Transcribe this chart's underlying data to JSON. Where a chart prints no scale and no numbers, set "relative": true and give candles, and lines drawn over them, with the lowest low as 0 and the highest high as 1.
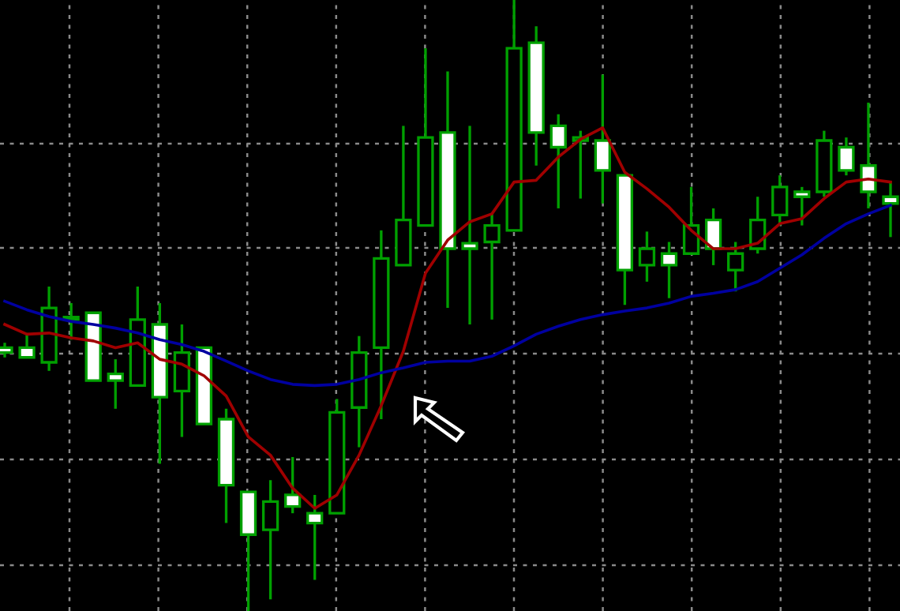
{
  "chart_data": {
    "type": "candlestick",
    "relative": true,
    "grid": true,
    "categories": [
      null,
      null,
      null,
      null,
      null,
      null,
      null,
      null,
      null,
      null,
      null,
      null,
      null,
      null,
      null,
      null,
      null,
      null,
      null,
      null,
      null,
      null,
      null,
      null,
      null,
      null,
      null,
      null,
      null,
      null,
      null,
      null,
      null,
      null,
      null,
      null,
      null,
      null,
      null,
      null,
      null
    ],
    "ohlc": [
      [
        0.431,
        0.439,
        0.415,
        0.423
      ],
      [
        0.431,
        0.455,
        0.415,
        0.415
      ],
      [
        0.407,
        0.531,
        0.393,
        0.496
      ],
      [
        0.477,
        0.504,
        0.444,
        0.477
      ],
      [
        0.488,
        0.488,
        0.377,
        0.377
      ],
      [
        0.388,
        0.412,
        0.331,
        0.377
      ],
      [
        0.369,
        0.531,
        0.369,
        0.477
      ],
      [
        0.469,
        0.504,
        0.241,
        0.35
      ],
      [
        0.36,
        0.469,
        0.285,
        0.423
      ],
      [
        0.431,
        0.431,
        0.306,
        0.306
      ],
      [
        0.314,
        0.331,
        0.144,
        0.206
      ],
      [
        0.195,
        0.195,
        0,
        0.125
      ],
      [
        0.133,
        0.214,
        0.019,
        0.179
      ],
      [
        0.19,
        0.252,
        0.16,
        0.171
      ],
      [
        0.16,
        0.19,
        0.051,
        0.144
      ],
      [
        0.16,
        0.347,
        0.16,
        0.325
      ],
      [
        0.333,
        0.45,
        0.268,
        0.423
      ],
      [
        0.431,
        0.623,
        0.314,
        0.577
      ],
      [
        0.566,
        0.794,
        0.566,
        0.64
      ],
      [
        0.631,
        0.921,
        0.631,
        0.775
      ],
      [
        0.783,
        0.883,
        0.496,
        0.593
      ],
      [
        0.602,
        0.794,
        0.469,
        0.593
      ],
      [
        0.604,
        0.65,
        0.477,
        0.631
      ],
      [
        0.623,
        1,
        0.623,
        0.921
      ],
      [
        0.93,
        0.957,
        0.729,
        0.783
      ],
      [
        0.794,
        0.813,
        0.659,
        0.759
      ],
      [
        0.77,
        0.786,
        0.675,
        0.775
      ],
      [
        0.77,
        0.878,
        0.667,
        0.721
      ],
      [
        0.713,
        0.713,
        0.501,
        0.558
      ],
      [
        0.566,
        0.621,
        0.539,
        0.593
      ],
      [
        0.585,
        0.604,
        0.512,
        0.566
      ],
      [
        0.585,
        0.694,
        0.585,
        0.631
      ],
      [
        0.64,
        0.659,
        0.566,
        0.593
      ],
      [
        0.558,
        0.604,
        0.523,
        0.585
      ],
      [
        0.593,
        0.678,
        0.585,
        0.64
      ],
      [
        0.648,
        0.713,
        0.631,
        0.694
      ],
      [
        0.686,
        0.694,
        0.631,
        0.678
      ],
      [
        0.686,
        0.786,
        0.678,
        0.77
      ],
      [
        0.759,
        0.775,
        0.713,
        0.721
      ],
      [
        0.729,
        0.832,
        0.659,
        0.686
      ],
      [
        0.678,
        0.702,
        0.612,
        0.667
      ]
    ],
    "series": [
      {
        "type": "line",
        "color": "#a00000",
        "values": [
          0.469,
          0.453,
          0.455,
          0.447,
          0.442,
          0.431,
          0.439,
          0.412,
          0.404,
          0.385,
          0.352,
          0.285,
          0.255,
          0.201,
          0.168,
          0.19,
          0.255,
          0.336,
          0.425,
          0.553,
          0.607,
          0.637,
          0.65,
          0.702,
          0.705,
          0.743,
          0.772,
          0.791,
          0.718,
          0.691,
          0.661,
          0.623,
          0.593,
          0.593,
          0.602,
          0.634,
          0.642,
          0.675,
          0.702,
          0.707,
          0.702
        ]
      },
      {
        "type": "line",
        "color": "#0000a0",
        "values": [
          0.507,
          0.493,
          0.482,
          0.474,
          0.469,
          0.463,
          0.455,
          0.444,
          0.436,
          0.425,
          0.409,
          0.393,
          0.379,
          0.371,
          0.369,
          0.371,
          0.379,
          0.39,
          0.398,
          0.407,
          0.409,
          0.409,
          0.417,
          0.434,
          0.453,
          0.466,
          0.477,
          0.485,
          0.491,
          0.496,
          0.504,
          0.515,
          0.52,
          0.526,
          0.539,
          0.561,
          0.583,
          0.61,
          0.634,
          0.65,
          0.664
        ]
      }
    ]
  }
}
